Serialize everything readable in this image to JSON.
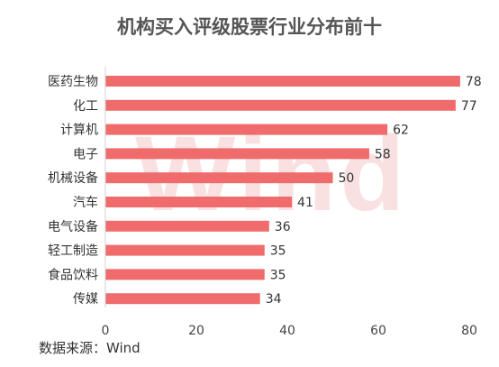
{
  "chart_data": {
    "type": "bar",
    "orientation": "horizontal",
    "title": "机构买入评级股票行业分布前十",
    "categories": [
      "医药生物",
      "化工",
      "计算机",
      "电子",
      "机械设备",
      "汽车",
      "电气设备",
      "轻工制造",
      "食品饮料",
      "传媒"
    ],
    "values": [
      78,
      77,
      62,
      58,
      50,
      41,
      36,
      35,
      35,
      34
    ],
    "xlabel": "",
    "ylabel": "",
    "xlim": [
      0,
      80
    ],
    "xticks": [
      "0",
      "20",
      "40",
      "60",
      "80"
    ],
    "grid": false,
    "legend": "none",
    "bar_color": "#f06b6b"
  },
  "watermark": "Wind",
  "source": "数据来源：Wind"
}
